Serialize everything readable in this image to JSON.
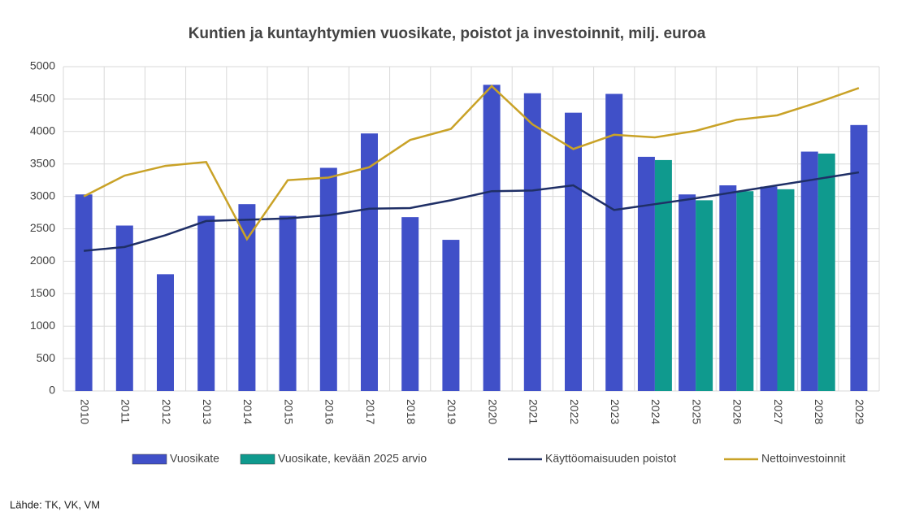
{
  "chart_data": {
    "type": "bar",
    "title": "Kuntien ja kuntayhtymien  vuosikate, poistot ja investoinnit, milj. euroa",
    "source": "Lähde: TK, VK, VM",
    "categories": [
      "2010",
      "2011",
      "2012",
      "2013",
      "2014",
      "2015",
      "2016",
      "2017",
      "2018",
      "2019",
      "2020",
      "2021",
      "2022",
      "2023",
      "2024",
      "2025",
      "2026",
      "2027",
      "2028",
      "2029"
    ],
    "series": [
      {
        "name": "Vuosikate",
        "color": "#4050c8",
        "kind": "bar",
        "values": [
          3030,
          2550,
          1800,
          2700,
          2880,
          2700,
          3440,
          3970,
          2680,
          2330,
          4720,
          4590,
          4290,
          4580,
          3610,
          3030,
          3170,
          3150,
          3690,
          4100
        ]
      },
      {
        "name": "Vuosikate, kevään 2025 arvio",
        "color": "#0f9a8e",
        "kind": "bar",
        "values": [
          null,
          null,
          null,
          null,
          null,
          null,
          null,
          null,
          null,
          null,
          null,
          null,
          null,
          null,
          3560,
          2940,
          3080,
          3110,
          3660,
          null
        ]
      },
      {
        "name": "Käyttöomaisuuden poistot",
        "color": "#1f2f66",
        "kind": "line",
        "values": [
          2160,
          2220,
          2400,
          2620,
          2640,
          2660,
          2710,
          2810,
          2820,
          2940,
          3080,
          3090,
          3170,
          2790,
          2880,
          2970,
          3070,
          3170,
          3270,
          3370
        ]
      },
      {
        "name": "Nettoinvestoinnit",
        "color": "#c9a227",
        "kind": "line",
        "values": [
          3000,
          3320,
          3470,
          3530,
          2340,
          3250,
          3290,
          3450,
          3870,
          4040,
          4700,
          4110,
          3730,
          3950,
          3910,
          4010,
          4180,
          4250,
          4450,
          4670
        ]
      }
    ],
    "ylim": [
      0,
      5000
    ],
    "yticks": [
      0,
      500,
      1000,
      1500,
      2000,
      2500,
      3000,
      3500,
      4000,
      4500,
      5000
    ],
    "grid": true
  }
}
